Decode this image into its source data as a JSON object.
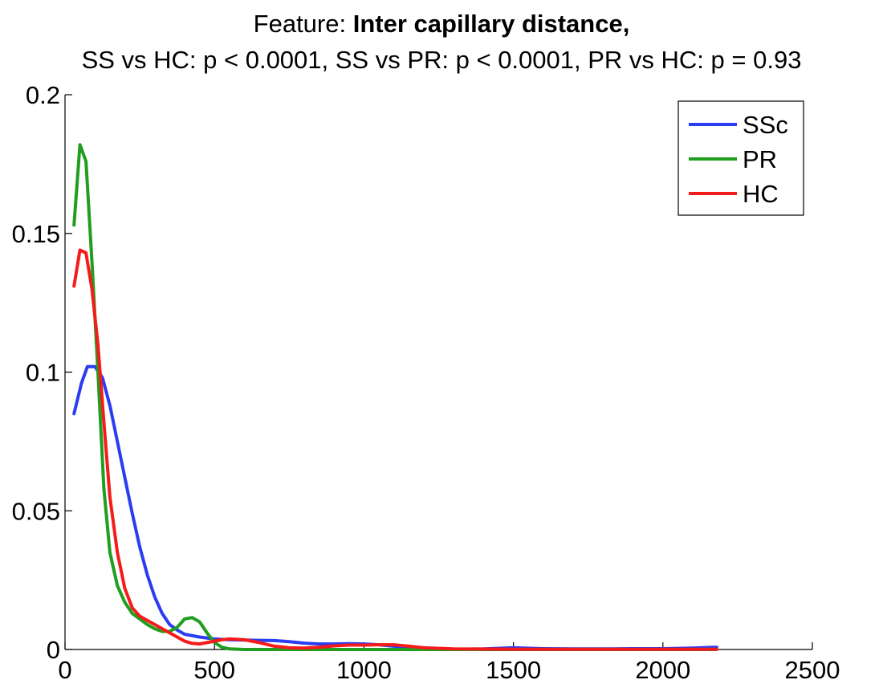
{
  "chart_data": {
    "type": "line",
    "title_prefix": "Feature:",
    "title_bold": "Inter capillary distance,",
    "subtitle": "SS vs HC: p < 0.0001, SS vs PR: p < 0.0001, PR vs HC: p = 0.93",
    "xlabel": "",
    "ylabel": "",
    "xlim": [
      0,
      2500
    ],
    "ylim": [
      0,
      0.2
    ],
    "xticks": [
      0,
      500,
      1000,
      1500,
      2000,
      2500
    ],
    "xtick_labels": [
      "0",
      "500",
      "1000",
      "1500",
      "2000",
      "2500"
    ],
    "yticks": [
      0,
      0.05,
      0.1,
      0.15,
      0.2
    ],
    "ytick_labels": [
      "0",
      "0.05",
      "0.1",
      "0.15",
      "0.2"
    ],
    "grid": false,
    "legend_position": "top-right",
    "series": [
      {
        "name": "SSc",
        "color": "#2b3df0",
        "x": [
          30,
          55,
          75,
          100,
          125,
          150,
          175,
          200,
          225,
          250,
          275,
          300,
          325,
          350,
          375,
          400,
          450,
          500,
          550,
          600,
          650,
          700,
          750,
          800,
          850,
          900,
          950,
          1000,
          1050,
          1100,
          1150,
          1200,
          1300,
          1400,
          1500,
          1600,
          1700,
          1800,
          1900,
          2000,
          2100,
          2180
        ],
        "values": [
          0.085,
          0.096,
          0.102,
          0.102,
          0.098,
          0.088,
          0.075,
          0.062,
          0.049,
          0.037,
          0.027,
          0.019,
          0.013,
          0.009,
          0.007,
          0.0055,
          0.0045,
          0.0038,
          0.0035,
          0.0034,
          0.0033,
          0.0032,
          0.0028,
          0.0023,
          0.002,
          0.002,
          0.0021,
          0.002,
          0.0017,
          0.0012,
          0.0006,
          0.0002,
          0.0001,
          0.0002,
          0.0006,
          0.0003,
          0.0002,
          0.0002,
          0.0003,
          0.0003,
          0.0005,
          0.0008
        ]
      },
      {
        "name": "PR",
        "color": "#1f9e1f",
        "x": [
          30,
          50,
          70,
          90,
          110,
          130,
          150,
          175,
          200,
          225,
          250,
          275,
          300,
          325,
          350,
          375,
          400,
          425,
          450,
          475,
          500,
          525,
          550,
          600,
          650,
          700,
          800,
          900,
          1000,
          1100,
          1200,
          1500,
          2000,
          2180
        ],
        "values": [
          0.153,
          0.182,
          0.176,
          0.14,
          0.1,
          0.058,
          0.035,
          0.023,
          0.017,
          0.013,
          0.011,
          0.009,
          0.0075,
          0.0065,
          0.0065,
          0.008,
          0.011,
          0.0115,
          0.01,
          0.006,
          0.0025,
          0.0008,
          0.0002,
          0.0,
          0.0,
          0.0,
          0.0,
          0.0,
          0.0,
          0.0,
          0.0,
          0.0,
          0.0,
          0.0
        ]
      },
      {
        "name": "HC",
        "color": "#f51b1b",
        "x": [
          30,
          50,
          70,
          90,
          110,
          130,
          150,
          175,
          200,
          225,
          250,
          275,
          300,
          325,
          350,
          375,
          400,
          425,
          450,
          475,
          500,
          525,
          550,
          600,
          650,
          700,
          750,
          800,
          850,
          900,
          950,
          1000,
          1050,
          1100,
          1150,
          1200,
          1300,
          1500,
          1800,
          2000,
          2180
        ],
        "values": [
          0.131,
          0.144,
          0.143,
          0.13,
          0.11,
          0.082,
          0.055,
          0.035,
          0.022,
          0.015,
          0.012,
          0.0105,
          0.009,
          0.0075,
          0.006,
          0.0045,
          0.003,
          0.0022,
          0.002,
          0.0025,
          0.003,
          0.0035,
          0.0038,
          0.0035,
          0.0025,
          0.0012,
          0.0006,
          0.0005,
          0.0008,
          0.0013,
          0.0016,
          0.0016,
          0.0017,
          0.0017,
          0.0012,
          0.0006,
          0.0002,
          0.0001,
          0.0001,
          0.0001,
          0.0001
        ]
      }
    ]
  }
}
